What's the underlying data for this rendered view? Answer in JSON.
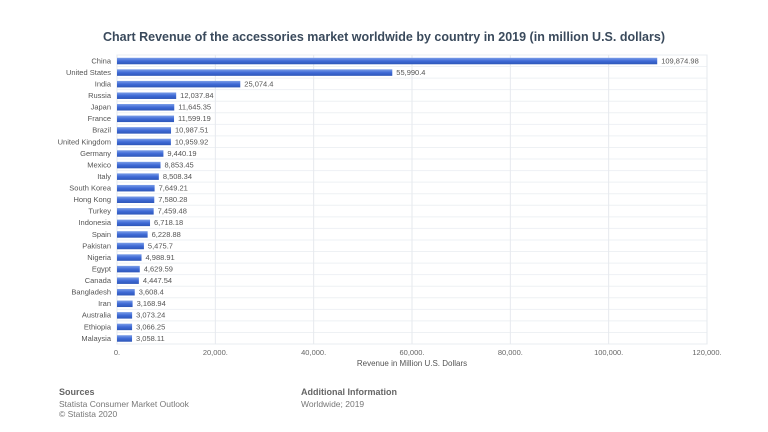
{
  "chart_data": {
    "type": "bar",
    "orientation": "horizontal",
    "title": "Chart Revenue of the accessories market worldwide by country in 2019 (in million U.S. dollars)",
    "xlabel": "Revenue in Million U.S. Dollars",
    "ylabel": "",
    "xlim": [
      0,
      120000
    ],
    "x_ticks": [
      "0.",
      "20,000.",
      "40,000.",
      "60,000.",
      "80,000.",
      "100,000.",
      "120,000."
    ],
    "grid": true,
    "bar_color": "#4a74d9",
    "categories": [
      "China",
      "United States",
      "India",
      "Russia",
      "Japan",
      "France",
      "Brazil",
      "United Kingdom",
      "Germany",
      "Mexico",
      "Italy",
      "South Korea",
      "Hong Kong",
      "Turkey",
      "Indonesia",
      "Spain",
      "Pakistan",
      "Nigeria",
      "Egypt",
      "Canada",
      "Bangladesh",
      "Iran",
      "Australia",
      "Ethiopia",
      "Malaysia"
    ],
    "values": [
      109874.98,
      55990.4,
      25074.4,
      12037.84,
      11645.35,
      11599.19,
      10987.51,
      10959.92,
      9440.19,
      8853.45,
      8508.34,
      7649.21,
      7580.28,
      7459.48,
      6718.18,
      6228.88,
      5475.7,
      4988.91,
      4629.59,
      4447.54,
      3608.4,
      3168.94,
      3073.24,
      3066.25,
      3058.11
    ],
    "data_labels": [
      "109,874.98",
      "55,990.4",
      "25,074.4",
      "12,037.84",
      "11,645.35",
      "11,599.19",
      "10,987.51",
      "10,959.92",
      "9,440.19",
      "8,853.45",
      "8,508.34",
      "7,649.21",
      "7,580.28",
      "7,459.48",
      "6,718.18",
      "6,228.88",
      "5,475.7",
      "4,988.91",
      "4,629.59",
      "4,447.54",
      "3,608.4",
      "3,168.94",
      "3,073.24",
      "3,066.25",
      "3,058.11"
    ]
  },
  "footer": {
    "sources_heading": "Sources",
    "sources_line1": "Statista Consumer Market Outlook",
    "sources_line2": "© Statista 2020",
    "additional_heading": "Additional Information",
    "additional_text": "Worldwide; 2019"
  }
}
